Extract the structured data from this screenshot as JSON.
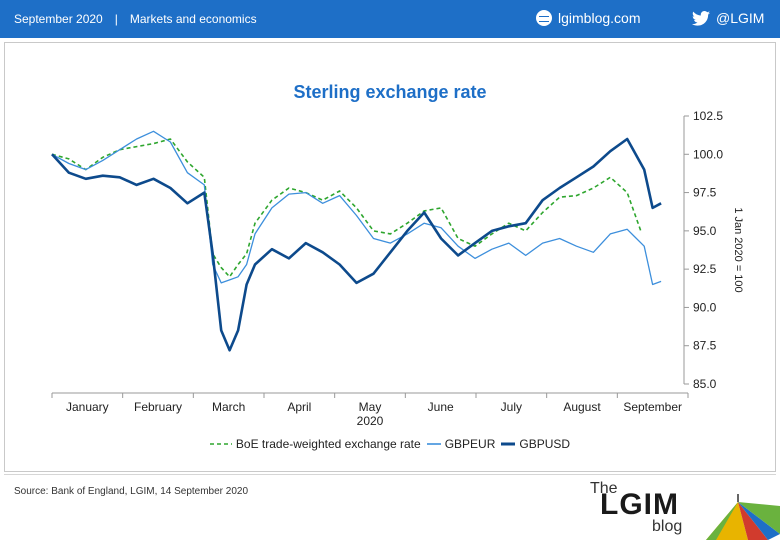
{
  "header": {
    "date": "September 2020",
    "separator": "|",
    "section": "Markets and economics",
    "site": "lgimblog.com",
    "twitter": "@LGIM",
    "bg_color": "#1e6fc7"
  },
  "footer": {
    "source": "Source: Bank of England, LGIM, 14 September 2020",
    "logo": {
      "the": "The",
      "name": "LGIM",
      "blog": "blog"
    }
  },
  "chart_data": {
    "type": "line",
    "title": "Sterling exchange rate",
    "ylabel": "1 Jan 2020 = 100",
    "ylim": [
      85,
      102.5
    ],
    "yticks": [
      "102.5",
      "100.0",
      "97.5",
      "95.0",
      "92.5",
      "90.0",
      "87.5",
      "85.0"
    ],
    "xlabel_year": "2020",
    "x_months": [
      "January",
      "February",
      "March",
      "April",
      "May",
      "June",
      "July",
      "August",
      "September"
    ],
    "x_range_weeks": [
      0,
      37
    ],
    "legend_placement": "bottom",
    "series": [
      {
        "name": "BoE trade-weighted exchange rate",
        "style": "dashed",
        "color": "#2ea62e",
        "x": [
          0,
          1,
          2,
          3,
          4,
          5,
          6,
          7,
          8,
          9,
          9.5,
          10,
          10.5,
          11,
          11.5,
          12,
          13,
          14,
          15,
          16,
          17,
          18,
          19,
          20,
          21,
          22,
          23,
          24,
          25,
          26,
          27,
          28,
          29,
          30,
          31,
          32,
          33,
          34,
          34.8
        ],
        "values": [
          100.0,
          99.7,
          99.0,
          99.8,
          100.3,
          100.5,
          100.7,
          101.0,
          99.5,
          98.5,
          93.5,
          92.6,
          92.0,
          92.8,
          93.5,
          95.5,
          97.0,
          97.8,
          97.5,
          97.0,
          97.6,
          96.5,
          95.0,
          94.8,
          95.5,
          96.3,
          96.5,
          94.5,
          94.0,
          94.8,
          95.5,
          95.0,
          96.2,
          97.2,
          97.3,
          97.8,
          98.5,
          97.5,
          95.0
        ]
      },
      {
        "name": "GBPEUR",
        "style": "solid-thin",
        "color": "#3d8fdc",
        "x": [
          0,
          1,
          2,
          3,
          4,
          5,
          6,
          7,
          8,
          9,
          9.5,
          10,
          10.5,
          11,
          11.5,
          12,
          13,
          14,
          15,
          16,
          17,
          18,
          19,
          20,
          21,
          22,
          23,
          24,
          25,
          26,
          27,
          28,
          29,
          30,
          31,
          32,
          33,
          34,
          35,
          35.5,
          36
        ],
        "values": [
          100.0,
          99.4,
          99.0,
          99.6,
          100.3,
          101.0,
          101.5,
          100.8,
          98.8,
          98.0,
          92.8,
          91.6,
          91.8,
          92.0,
          92.8,
          94.8,
          96.5,
          97.4,
          97.5,
          96.8,
          97.3,
          96.0,
          94.5,
          94.2,
          94.8,
          95.5,
          95.2,
          94.0,
          93.2,
          93.8,
          94.2,
          93.4,
          94.2,
          94.5,
          94.0,
          93.6,
          94.8,
          95.1,
          94.0,
          91.5,
          91.7
        ]
      },
      {
        "name": "GBPUSD",
        "style": "solid-thick",
        "color": "#0d4a8c",
        "x": [
          0,
          1,
          2,
          3,
          4,
          5,
          6,
          7,
          8,
          9,
          9.5,
          10,
          10.5,
          11,
          11.5,
          12,
          13,
          14,
          15,
          16,
          17,
          18,
          19,
          20,
          21,
          22,
          23,
          24,
          25,
          26,
          27,
          28,
          29,
          30,
          31,
          32,
          33,
          34,
          35,
          35.5,
          36
        ],
        "values": [
          100.0,
          98.8,
          98.4,
          98.6,
          98.5,
          98.0,
          98.4,
          97.8,
          96.8,
          97.5,
          93.5,
          88.5,
          87.2,
          88.5,
          91.5,
          92.8,
          93.8,
          93.2,
          94.2,
          93.6,
          92.8,
          91.6,
          92.2,
          93.6,
          95.0,
          96.2,
          94.5,
          93.4,
          94.2,
          95.0,
          95.3,
          95.5,
          97.0,
          97.8,
          98.5,
          99.2,
          100.2,
          101.0,
          99.0,
          96.5,
          96.8
        ]
      }
    ]
  }
}
